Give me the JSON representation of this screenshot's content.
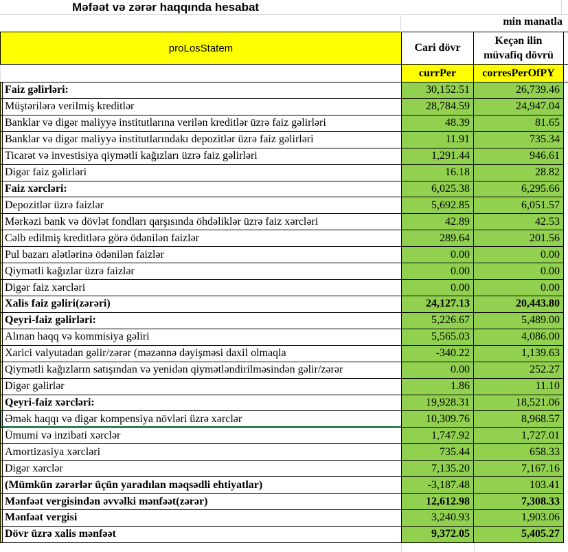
{
  "title": "Məfəət və zərər haqqında hesabat",
  "unit_note": "min manatla",
  "columns": {
    "label_header": "proLosStatem",
    "current_period": "Cari dövr",
    "prior_line1": "Keçən ilin",
    "prior_line2": "müvafiq dövrü",
    "current_code": "currPer",
    "prior_code": "corresPerOfPY"
  },
  "colors": {
    "header_yellow": "#FFFF00",
    "value_green": "#92D050",
    "selection_green": "#1F7346",
    "grid_black": "#000000",
    "gridline_gray": "#D6D6D6"
  },
  "rows": [
    {
      "label": "Faiz gəlirləri:",
      "current": "30,152.51",
      "prior": "26,739.46",
      "bold": true,
      "bold_values": false,
      "selected": false
    },
    {
      "label": "Müştərilərə verilmiş kreditlər",
      "current": "28,784.59",
      "prior": "24,947.04",
      "bold": false,
      "bold_values": false,
      "selected": false
    },
    {
      "label": "Banklar və digər maliyyə institutlarına verilən kreditlər üzrə faiz gəlirləri",
      "current": "48.39",
      "prior": "81.65",
      "bold": false,
      "bold_values": false,
      "selected": false
    },
    {
      "label": "Banklar və digər maliyyə institutlarındakı depozitlər üzrə faiz gəlirləri",
      "current": "11.91",
      "prior": "735.34",
      "bold": false,
      "bold_values": false,
      "selected": false
    },
    {
      "label": "Ticarət və investisiya qiymətli kağızları üzrə faiz gəlirləri",
      "current": "1,291.44",
      "prior": "946.61",
      "bold": false,
      "bold_values": false,
      "selected": false
    },
    {
      "label": "Digər faiz gəlirləri",
      "current": "16.18",
      "prior": "28.82",
      "bold": false,
      "bold_values": false,
      "selected": false
    },
    {
      "label": "Faiz xərcləri:",
      "current": "6,025.38",
      "prior": "6,295.66",
      "bold": true,
      "bold_values": false,
      "selected": false
    },
    {
      "label": "Depozitlər üzrə faizlər",
      "current": "5,692.85",
      "prior": "6,051.57",
      "bold": false,
      "bold_values": false,
      "selected": false
    },
    {
      "label": "Mərkəzi bank və dövlət fondları qarşısında öhdəliklər üzrə faiz xərcləri",
      "current": "42.89",
      "prior": "42.53",
      "bold": false,
      "bold_values": false,
      "selected": false
    },
    {
      "label": "Cəlb edilmiş kreditlərə görə ödənilən faizlər",
      "current": "289.64",
      "prior": "201.56",
      "bold": false,
      "bold_values": false,
      "selected": false
    },
    {
      "label": "Pul bazarı alətlərinə ödənilən faizlər",
      "current": "0.00",
      "prior": "0.00",
      "bold": false,
      "bold_values": false,
      "selected": false
    },
    {
      "label": "Qiymətli kağızlar üzrə faizlər",
      "current": "0.00",
      "prior": "0.00",
      "bold": false,
      "bold_values": false,
      "selected": false
    },
    {
      "label": "Digər faiz xərcləri",
      "current": "0.00",
      "prior": "0.00",
      "bold": false,
      "bold_values": false,
      "selected": false
    },
    {
      "label": "Xalis faiz gəliri(zərəri)",
      "current": "24,127.13",
      "prior": "20,443.80",
      "bold": true,
      "bold_values": true,
      "selected": false
    },
    {
      "label": "Qeyri-faiz gəlirləri:",
      "current": "5,226.67",
      "prior": "5,489.00",
      "bold": true,
      "bold_values": false,
      "selected": false
    },
    {
      "label": "Alınan haqq və kommisiya gəliri",
      "current": "5,565.03",
      "prior": "4,086.00",
      "bold": false,
      "bold_values": false,
      "selected": false
    },
    {
      "label": "Xarici valyutadan gəlir/zərər (məzənnə dəyişməsi daxil olmaqla",
      "current": "-340.22",
      "prior": "1,139.63",
      "bold": false,
      "bold_values": false,
      "selected": false
    },
    {
      "label": "Qiymətli kağızların satışından və yenidən qiymətləndirilməsindən gəlir/zərər",
      "current": "0.00",
      "prior": "252.27",
      "bold": false,
      "bold_values": false,
      "selected": false
    },
    {
      "label": "Digər gəlirlər",
      "current": "1.86",
      "prior": "11.10",
      "bold": false,
      "bold_values": false,
      "selected": false
    },
    {
      "label": "Qeyri-faiz xərcləri:",
      "current": "19,928.31",
      "prior": "18,521.06",
      "bold": true,
      "bold_values": false,
      "selected": false
    },
    {
      "label": "Əmək haqqı və digər kompensiya növləri üzrə xərclər",
      "current": "10,309.76",
      "prior": "8,968.57",
      "bold": false,
      "bold_values": false,
      "selected": true
    },
    {
      "label": "Ümumi və inzibati xərclər",
      "current": "1,747.92",
      "prior": "1,727.01",
      "bold": false,
      "bold_values": false,
      "selected": false
    },
    {
      "label": "Amortizasiya xərcləri",
      "current": "735.44",
      "prior": "658.33",
      "bold": false,
      "bold_values": false,
      "selected": false
    },
    {
      "label": "Digər xərclər",
      "current": "7,135.20",
      "prior": "7,167.16",
      "bold": false,
      "bold_values": false,
      "selected": false
    },
    {
      "label": "(Mümkün zərərlər üçün yaradılan məqsədli ehtiyatlar)",
      "current": "-3,187.48",
      "prior": "103.41",
      "bold": true,
      "bold_values": false,
      "selected": false
    },
    {
      "label": "Mənfəət vergisindən əvvəlki mənfəət(zərər)",
      "current": "12,612.98",
      "prior": "7,308.33",
      "bold": true,
      "bold_values": true,
      "selected": false
    },
    {
      "label": "Mənfəət vergisi",
      "current": "3,240.93",
      "prior": "1,903.06",
      "bold": true,
      "bold_values": false,
      "selected": false
    },
    {
      "label": "Dövr üzrə xalis mənfəət",
      "current": "9,372.05",
      "prior": "5,405.27",
      "bold": true,
      "bold_values": true,
      "selected": false
    }
  ]
}
